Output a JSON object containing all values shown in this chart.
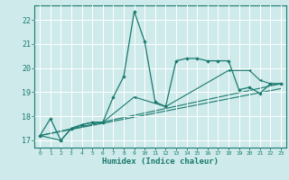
{
  "title": "",
  "xlabel": "Humidex (Indice chaleur)",
  "bg_color": "#ceeaea",
  "line_color": "#1a7a6e",
  "grid_color": "#ffffff",
  "xlim": [
    -0.5,
    23.5
  ],
  "ylim": [
    16.7,
    22.6
  ],
  "yticks": [
    17,
    18,
    19,
    20,
    21,
    22
  ],
  "xticks": [
    0,
    1,
    2,
    3,
    4,
    5,
    6,
    7,
    8,
    9,
    10,
    11,
    12,
    13,
    14,
    15,
    16,
    17,
    18,
    19,
    20,
    21,
    22,
    23
  ],
  "main_series": {
    "x": [
      0,
      1,
      2,
      3,
      4,
      5,
      6,
      7,
      8,
      9,
      10,
      11,
      12,
      13,
      14,
      15,
      16,
      17,
      18,
      19,
      20,
      21,
      22,
      23
    ],
    "y": [
      17.2,
      17.9,
      17.0,
      17.5,
      17.65,
      17.75,
      17.75,
      18.8,
      19.65,
      22.35,
      21.1,
      18.6,
      18.4,
      20.3,
      20.4,
      20.4,
      20.3,
      20.3,
      20.3,
      19.1,
      19.2,
      18.95,
      19.35,
      19.35
    ]
  },
  "trend1": {
    "x": [
      0,
      2,
      3,
      4,
      5,
      6,
      9,
      12,
      18,
      20,
      21,
      22,
      23
    ],
    "y": [
      17.2,
      17.0,
      17.5,
      17.65,
      17.75,
      17.75,
      18.8,
      18.4,
      19.9,
      19.9,
      19.5,
      19.35,
      19.35
    ]
  },
  "trend2": {
    "x": [
      0,
      23
    ],
    "y": [
      17.2,
      19.15
    ]
  },
  "trend3": {
    "x": [
      0,
      23
    ],
    "y": [
      17.2,
      19.35
    ]
  }
}
